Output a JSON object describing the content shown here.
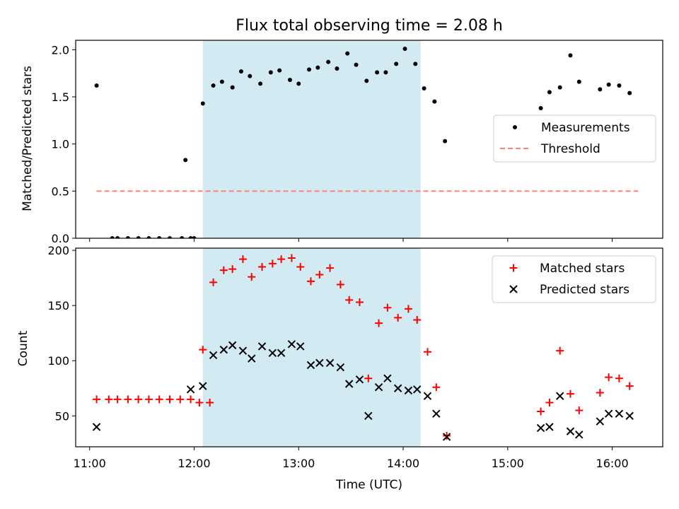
{
  "chart_data": [
    {
      "type": "scatter",
      "title": "Flux total observing time = 2.08 h",
      "ylabel": "Matched/Predicted stars",
      "xlim": [
        "10:52",
        "16:29"
      ],
      "ylim": [
        0,
        2.1
      ],
      "xticks": [
        "11:00",
        "12:00",
        "13:00",
        "14:00",
        "15:00",
        "16:00"
      ],
      "yticks": [
        "0.0",
        "0.5",
        "1.0",
        "1.5",
        "2.0"
      ],
      "shaded_interval": [
        "12:05",
        "14:10"
      ],
      "shade_color": "#add8e6",
      "legend_position": "center-right",
      "series": [
        {
          "name": "Measurements",
          "kind": "points",
          "color": "#000000",
          "points": [
            [
              "11:04",
              1.62
            ],
            [
              "11:13",
              0.0
            ],
            [
              "11:16",
              0.0
            ],
            [
              "11:22",
              0.0
            ],
            [
              "11:28",
              0.0
            ],
            [
              "11:34",
              0.0
            ],
            [
              "11:40",
              0.0
            ],
            [
              "11:46",
              0.0
            ],
            [
              "11:53",
              0.0
            ],
            [
              "11:58",
              0.0
            ],
            [
              "11:55",
              0.83
            ],
            [
              "12:00",
              0.0
            ],
            [
              "12:05",
              1.43
            ],
            [
              "12:11",
              1.62
            ],
            [
              "12:16",
              1.66
            ],
            [
              "12:22",
              1.6
            ],
            [
              "12:27",
              1.77
            ],
            [
              "12:32",
              1.72
            ],
            [
              "12:38",
              1.64
            ],
            [
              "12:44",
              1.76
            ],
            [
              "12:49",
              1.78
            ],
            [
              "12:55",
              1.68
            ],
            [
              "13:00",
              1.64
            ],
            [
              "13:06",
              1.79
            ],
            [
              "13:11",
              1.81
            ],
            [
              "13:17",
              1.87
            ],
            [
              "13:22",
              1.8
            ],
            [
              "13:28",
              1.96
            ],
            [
              "13:33",
              1.84
            ],
            [
              "13:39",
              1.67
            ],
            [
              "13:45",
              1.76
            ],
            [
              "13:50",
              1.76
            ],
            [
              "13:56",
              1.85
            ],
            [
              "14:01",
              2.01
            ],
            [
              "14:07",
              1.85
            ],
            [
              "14:12",
              1.59
            ],
            [
              "14:18",
              1.45
            ],
            [
              "14:24",
              1.03
            ],
            [
              "15:19",
              1.38
            ],
            [
              "15:24",
              1.55
            ],
            [
              "15:30",
              1.6
            ],
            [
              "15:36",
              1.94
            ],
            [
              "15:41",
              1.66
            ],
            [
              "15:53",
              1.58
            ],
            [
              "15:58",
              1.63
            ],
            [
              "16:04",
              1.62
            ],
            [
              "16:10",
              1.54
            ]
          ]
        },
        {
          "name": "Threshold",
          "kind": "dashed-line",
          "color": "#ff7f7f",
          "points": [
            [
              "11:04",
              0.5
            ],
            [
              "16:15",
              0.5
            ]
          ]
        }
      ]
    },
    {
      "type": "scatter",
      "xlabel": "Time (UTC)",
      "ylabel": "Count",
      "xlim": [
        "10:52",
        "16:29"
      ],
      "ylim": [
        22,
        202
      ],
      "xticks": [
        "11:00",
        "12:00",
        "13:00",
        "14:00",
        "15:00",
        "16:00"
      ],
      "yticks": [
        "50",
        "100",
        "150",
        "200"
      ],
      "shaded_interval": [
        "12:05",
        "14:10"
      ],
      "shade_color": "#add8e6",
      "legend_position": "top-right",
      "series": [
        {
          "name": "Matched stars",
          "kind": "plus",
          "color": "#ff0000",
          "points": [
            [
              "11:04",
              65
            ],
            [
              "11:11",
              65
            ],
            [
              "11:16",
              65
            ],
            [
              "11:22",
              65
            ],
            [
              "11:28",
              65
            ],
            [
              "11:34",
              65
            ],
            [
              "11:40",
              65
            ],
            [
              "11:46",
              65
            ],
            [
              "11:52",
              65
            ],
            [
              "11:58",
              65
            ],
            [
              "12:03",
              62
            ],
            [
              "12:09",
              62
            ],
            [
              "12:05",
              110
            ],
            [
              "12:11",
              171
            ],
            [
              "12:17",
              182
            ],
            [
              "12:22",
              183
            ],
            [
              "12:28",
              192
            ],
            [
              "12:33",
              176
            ],
            [
              "12:39",
              185
            ],
            [
              "12:45",
              188
            ],
            [
              "12:50",
              192
            ],
            [
              "12:56",
              193
            ],
            [
              "13:01",
              185
            ],
            [
              "13:07",
              172
            ],
            [
              "13:12",
              178
            ],
            [
              "13:18",
              184
            ],
            [
              "13:24",
              169
            ],
            [
              "13:29",
              155
            ],
            [
              "13:35",
              153
            ],
            [
              "13:40",
              84
            ],
            [
              "13:46",
              134
            ],
            [
              "13:51",
              148
            ],
            [
              "13:57",
              139
            ],
            [
              "14:03",
              147
            ],
            [
              "14:08",
              137
            ],
            [
              "14:14",
              108
            ],
            [
              "14:19",
              76
            ],
            [
              "14:25",
              32
            ],
            [
              "15:19",
              54
            ],
            [
              "15:24",
              62
            ],
            [
              "15:30",
              109
            ],
            [
              "15:36",
              70
            ],
            [
              "15:41",
              55
            ],
            [
              "15:53",
              71
            ],
            [
              "15:58",
              85
            ],
            [
              "16:04",
              84
            ],
            [
              "16:10",
              77
            ]
          ]
        },
        {
          "name": "Predicted stars",
          "kind": "cross",
          "color": "#000000",
          "points": [
            [
              "11:04",
              40
            ],
            [
              "11:58",
              74
            ],
            [
              "12:05",
              77
            ],
            [
              "12:11",
              105
            ],
            [
              "12:17",
              110
            ],
            [
              "12:22",
              114
            ],
            [
              "12:28",
              109
            ],
            [
              "12:33",
              102
            ],
            [
              "12:39",
              113
            ],
            [
              "12:45",
              107
            ],
            [
              "12:50",
              107
            ],
            [
              "12:56",
              115
            ],
            [
              "13:01",
              113
            ],
            [
              "13:07",
              96
            ],
            [
              "13:12",
              98
            ],
            [
              "13:18",
              98
            ],
            [
              "13:24",
              94
            ],
            [
              "13:29",
              79
            ],
            [
              "13:35",
              83
            ],
            [
              "13:40",
              50
            ],
            [
              "13:46",
              76
            ],
            [
              "13:51",
              84
            ],
            [
              "13:57",
              75
            ],
            [
              "14:03",
              73
            ],
            [
              "14:08",
              74
            ],
            [
              "14:14",
              68
            ],
            [
              "14:19",
              52
            ],
            [
              "14:25",
              31
            ],
            [
              "15:19",
              39
            ],
            [
              "15:24",
              40
            ],
            [
              "15:30",
              68
            ],
            [
              "15:36",
              36
            ],
            [
              "15:41",
              33
            ],
            [
              "15:53",
              45
            ],
            [
              "15:58",
              52
            ],
            [
              "16:04",
              52
            ],
            [
              "16:10",
              50
            ]
          ]
        }
      ]
    }
  ]
}
